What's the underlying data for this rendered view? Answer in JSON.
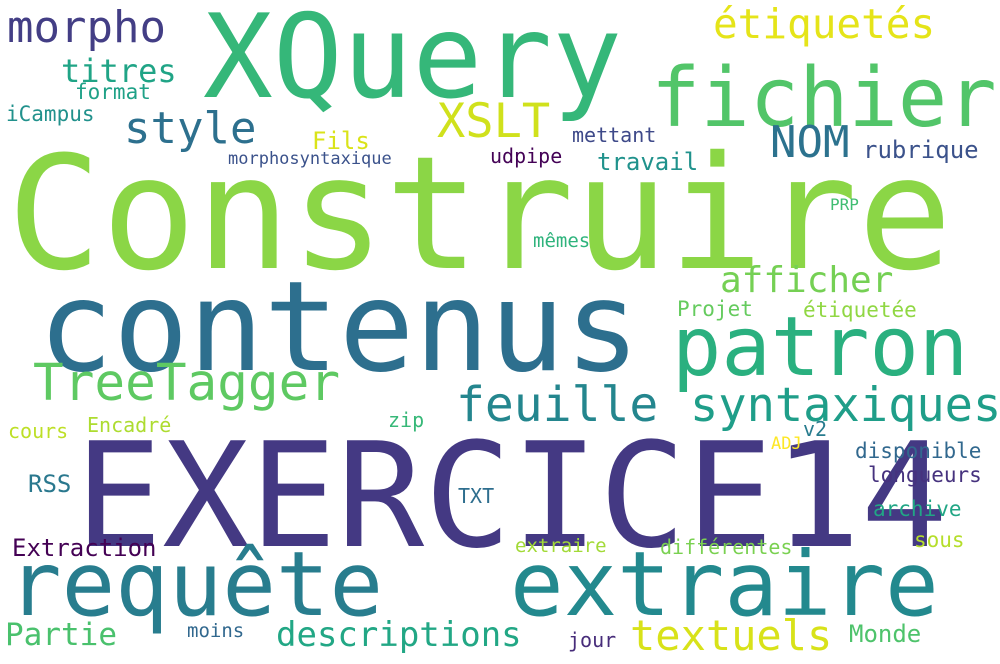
{
  "words": [
    {
      "text": "Construire",
      "color": "#8bd646"
    },
    {
      "text": "EXERCICE14",
      "color": "#443983"
    },
    {
      "text": "contenus",
      "color": "#2d6f8e"
    },
    {
      "text": "XQuery",
      "color": "#35b779"
    },
    {
      "text": "requête",
      "color": "#287d8e"
    },
    {
      "text": "extraire",
      "color": "#23898e"
    },
    {
      "text": "patron",
      "color": "#2ab07f"
    },
    {
      "text": "fichier",
      "color": "#52c569"
    },
    {
      "text": "TreeTagger",
      "color": "#5ec962"
    },
    {
      "text": "feuille",
      "color": "#24868e"
    },
    {
      "text": "syntaxiques",
      "color": "#1f9e89"
    },
    {
      "text": "textuels",
      "color": "#d8e219"
    },
    {
      "text": "descriptions",
      "color": "#22a785"
    },
    {
      "text": "morpho",
      "color": "#433e85"
    },
    {
      "text": "étiquetés",
      "color": "#e5e419"
    },
    {
      "text": "style",
      "color": "#2d708e"
    },
    {
      "text": "NOM",
      "color": "#2c728e"
    },
    {
      "text": "XSLT",
      "color": "#d0e11c"
    },
    {
      "text": "afficher",
      "color": "#75d054"
    },
    {
      "text": "titres",
      "color": "#20a486"
    },
    {
      "text": "Partie",
      "color": "#4ac16d"
    },
    {
      "text": "Extraction",
      "color": "#440154"
    },
    {
      "text": "rubrique",
      "color": "#3b528b"
    },
    {
      "text": "format",
      "color": "#1fa187"
    },
    {
      "text": "iCampus",
      "color": "#21918c"
    },
    {
      "text": "Fils",
      "color": "#dae319"
    },
    {
      "text": "morphosyntaxique",
      "color": "#3b528b"
    },
    {
      "text": "mettant",
      "color": "#3e4989"
    },
    {
      "text": "udpipe",
      "color": "#440256"
    },
    {
      "text": "travail",
      "color": "#20928c"
    },
    {
      "text": "PRP",
      "color": "#40bd72"
    },
    {
      "text": "mêmes",
      "color": "#2eb37c"
    },
    {
      "text": "Projet",
      "color": "#65cb5e"
    },
    {
      "text": "étiquetée",
      "color": "#90d743"
    },
    {
      "text": "cours",
      "color": "#bddf26"
    },
    {
      "text": "Encadré",
      "color": "#addc30"
    },
    {
      "text": "zip",
      "color": "#37b878"
    },
    {
      "text": "v2",
      "color": "#287c8e"
    },
    {
      "text": "ADJ",
      "color": "#fde725"
    },
    {
      "text": "disponible",
      "color": "#31688e"
    },
    {
      "text": "longueurs",
      "color": "#46327e"
    },
    {
      "text": "RSS",
      "color": "#2a788e"
    },
    {
      "text": "TXT",
      "color": "#2e6e8e"
    },
    {
      "text": "archive",
      "color": "#21a685"
    },
    {
      "text": "extraire",
      "color": "#a2da37"
    },
    {
      "text": "différentes",
      "color": "#7ad151"
    },
    {
      "text": "sous",
      "color": "#b5de2b"
    },
    {
      "text": "moins",
      "color": "#31688e"
    },
    {
      "text": "jour",
      "color": "#472c7a"
    },
    {
      "text": "Monde",
      "color": "#4ec36b"
    }
  ]
}
